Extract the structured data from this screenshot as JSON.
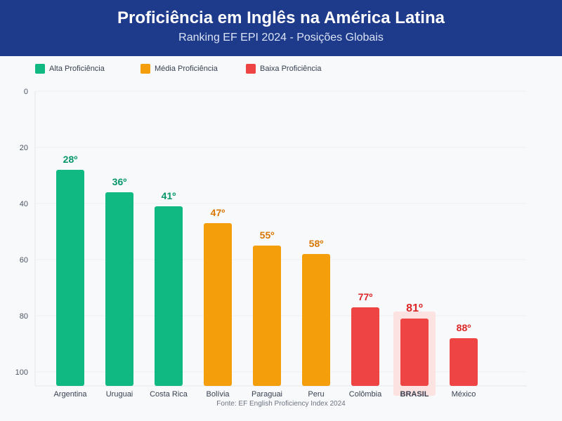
{
  "header": {
    "title": "Proficiência em Inglês na América Latina",
    "subtitle": "Ranking EF EPI 2024 - Posições Globais"
  },
  "legend": [
    {
      "label": "Alta Proficiência",
      "color": "#10b981"
    },
    {
      "label": "Média Proficiência",
      "color": "#f59e0b"
    },
    {
      "label": "Baixa Proficiência",
      "color": "#ef4444"
    }
  ],
  "colors": {
    "alta": "#10b981",
    "alta_text": "#059669",
    "media": "#f59e0b",
    "media_text": "#d97706",
    "baixa": "#ef4444",
    "baixa_text": "#dc2626",
    "highlight_bg": "#fde2e2",
    "header_bg": "#1e3a8a"
  },
  "chart_data": {
    "type": "bar",
    "title": "Proficiência em Inglês na América Latina",
    "subtitle": "Ranking EF EPI 2024 - Posições Globais",
    "categories": [
      "Argentina",
      "Uruguai",
      "Costa Rica",
      "Bolívia",
      "Paraguai",
      "Peru",
      "Colômbia",
      "BRASIL",
      "México"
    ],
    "values": [
      28,
      36,
      41,
      47,
      55,
      58,
      77,
      81,
      88
    ],
    "value_labels": [
      "28º",
      "36º",
      "41º",
      "47º",
      "55º",
      "58º",
      "77º",
      "81º",
      "88º"
    ],
    "levels": [
      "alta",
      "alta",
      "alta",
      "media",
      "media",
      "media",
      "baixa",
      "baixa",
      "baixa"
    ],
    "highlight": "BRASIL",
    "y_axis": {
      "min": 0,
      "max": 105,
      "reversed": true,
      "ticks": [
        0,
        20,
        40,
        60,
        80,
        100
      ]
    },
    "xlabel": "",
    "ylabel": "",
    "grid": true,
    "legend_position": "top-left"
  },
  "source": "Fonte: EF English Proficiency Index 2024"
}
